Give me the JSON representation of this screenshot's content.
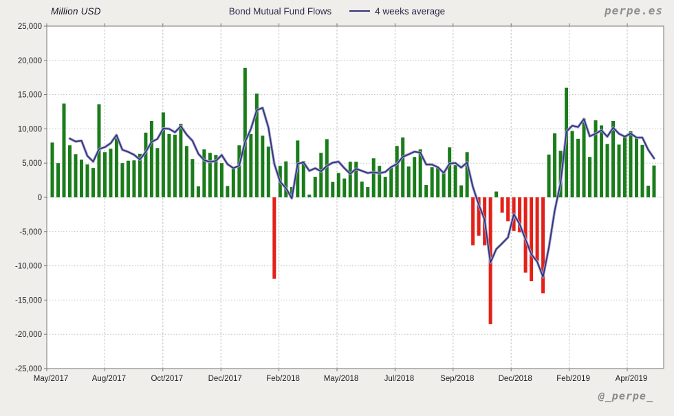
{
  "header": {
    "y_axis_title": "Million USD",
    "title": "Bond Mutual Fund Flows",
    "legend_label": "4 weeks average",
    "brand": "perpe.es"
  },
  "footer": {
    "handle": "@_perpe_"
  },
  "chart_data": {
    "type": "bar",
    "title": "Bond Mutual Fund Flows",
    "unit": "Million USD",
    "frequency": "weekly",
    "series": [
      {
        "name": "Bond mutual fund flows",
        "type": "bar",
        "values": [
          8000,
          5000,
          13700,
          7600,
          6300,
          5500,
          4800,
          4300,
          13600,
          6600,
          7100,
          9100,
          5000,
          5350,
          5400,
          6350,
          9450,
          11150,
          7200,
          12400,
          9250,
          9150,
          10750,
          7500,
          5600,
          1600,
          7000,
          6500,
          6200,
          5000,
          1650,
          4200,
          7600,
          18900,
          9250,
          15150,
          9000,
          7400,
          -11900,
          4600,
          5250,
          1500,
          8300,
          5300,
          400,
          3000,
          6500,
          8500,
          2250,
          3550,
          2750,
          5200,
          5200,
          2300,
          1500,
          5700,
          4600,
          3000,
          4400,
          7500,
          8750,
          4500,
          5900,
          7000,
          1800,
          4400,
          4400,
          3650,
          7300,
          4700,
          1750,
          6600,
          -7000,
          -5600,
          -7000,
          -18500,
          850,
          -2250,
          -3500,
          -4900,
          -5100,
          -11000,
          -12250,
          -9250,
          -14000,
          6250,
          9350,
          6800,
          16000,
          9700,
          8550,
          11500,
          5900,
          11250,
          10500,
          7800,
          11150,
          7700,
          8800,
          9650,
          8800,
          7650,
          1700,
          4650
        ]
      },
      {
        "name": "4 weeks average",
        "type": "line",
        "derived_from": "trailing 4-week mean of bar values",
        "window": 4
      }
    ],
    "x_tick_labels": [
      "May/2017",
      "Aug/2017",
      "Oct/2017",
      "Dec/2017",
      "Feb/2018",
      "May/2018",
      "Jul/2018",
      "Sep/2018",
      "Dec/2018",
      "Feb/2019",
      "Apr/2019"
    ],
    "y_tick_values": [
      25000,
      20000,
      15000,
      10000,
      5000,
      0,
      -5000,
      -10000,
      -15000,
      -20000,
      -25000
    ],
    "y_tick_labels": [
      "25,000",
      "20,000",
      "15,000",
      "10,000",
      "5,000",
      "0",
      "-5,000",
      "-10,000",
      "-15,000",
      "-20,000",
      "-25,000"
    ],
    "ylim": [
      -25000,
      25000
    ],
    "grid": true,
    "legend_position": "top-center",
    "colors": {
      "positive_bar": "#1a7c1a",
      "negative_bar": "#e32119",
      "line": "#32327d",
      "line_halo": "#a2a2cc",
      "grid": "#bdbdbd",
      "plot_border": "#8a8a8a",
      "plot_background": "#ffffff",
      "page_background": "#f0eeeb",
      "tick_text": "#1f1f1f"
    }
  }
}
